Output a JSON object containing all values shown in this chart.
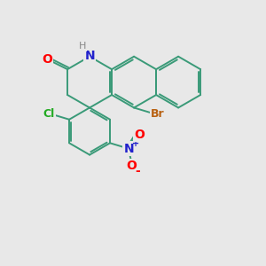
{
  "background_color": "#e8e8e8",
  "bond_color": "#3a9a78",
  "atom_colors": {
    "O": "#ff0000",
    "N_amine": "#2222cc",
    "N_nitro": "#2222cc",
    "Br": "#b86010",
    "Cl": "#22aa22",
    "H": "#888888"
  },
  "figsize": [
    3.0,
    3.0
  ],
  "dpi": 100
}
